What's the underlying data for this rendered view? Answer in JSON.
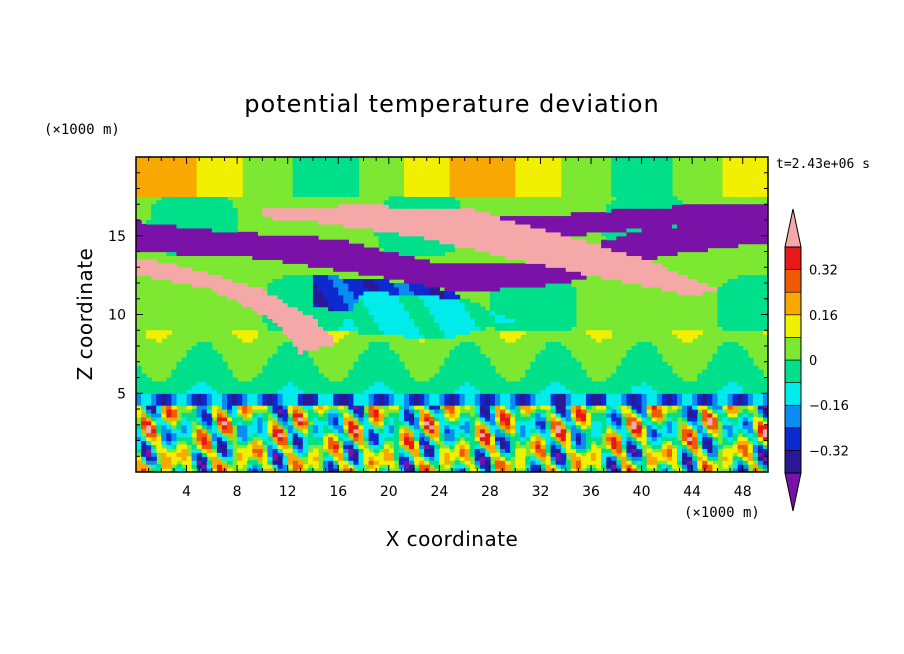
{
  "chart_data": {
    "type": "heatmap",
    "title": "potential temperature deviation",
    "xlabel": "X coordinate",
    "ylabel": "Z coordinate",
    "x_unit": "(×1000 m)",
    "y_unit": "(×1000 m)",
    "time_label": "t=2.43e+06 s",
    "xlim": [
      0,
      50
    ],
    "ylim": [
      0,
      20
    ],
    "x_ticks": [
      4,
      8,
      12,
      16,
      20,
      24,
      28,
      32,
      36,
      40,
      44,
      48
    ],
    "y_ticks": [
      5,
      10,
      15
    ],
    "colorbar": {
      "levels": [
        -0.4,
        -0.32,
        -0.24,
        -0.16,
        -0.08,
        0,
        0.08,
        0.16,
        0.24,
        0.32,
        0.4
      ],
      "labels": [
        "0.32",
        "0.16",
        "0",
        "−0.16",
        "−0.32"
      ],
      "label_values": [
        0.32,
        0.16,
        0,
        -0.16,
        -0.32
      ],
      "colors": [
        "#7a12a8",
        "#2a1896",
        "#0c2ad0",
        "#0a8cf0",
        "#00ecec",
        "#00e08a",
        "#7ce832",
        "#f0f000",
        "#f8a800",
        "#f05a00",
        "#e81818",
        "#f4a8a8"
      ],
      "extend": "both"
    },
    "bands": [
      {
        "name": "upper-purple",
        "value": -0.45,
        "points": [
          [
            0,
            15.9
          ],
          [
            8,
            15.2
          ],
          [
            16,
            14.8
          ],
          [
            24,
            13.2
          ],
          [
            32,
            13.4
          ],
          [
            40,
            15.4
          ],
          [
            50,
            16.2
          ],
          [
            50,
            14.6
          ],
          [
            42,
            13.8
          ],
          [
            34,
            12.0
          ],
          [
            26,
            11.4
          ],
          [
            18,
            12.6
          ],
          [
            10,
            13.6
          ],
          [
            0,
            14.0
          ]
        ]
      },
      {
        "name": "upper-lavender-jet",
        "value": -0.5,
        "points": [
          [
            24,
            16.2
          ],
          [
            32,
            16.2
          ],
          [
            40,
            16.8
          ],
          [
            50,
            17.1
          ],
          [
            50,
            16.0
          ],
          [
            42,
            15.6
          ],
          [
            34,
            15.0
          ],
          [
            26,
            15.2
          ]
        ]
      },
      {
        "name": "warm-tilted-jet",
        "value": 0.45,
        "points": [
          [
            10,
            16.8
          ],
          [
            18,
            16.9
          ],
          [
            26,
            16.8
          ],
          [
            34,
            15.0
          ],
          [
            40,
            13.6
          ],
          [
            46,
            11.6
          ],
          [
            44,
            11.2
          ],
          [
            38,
            12.2
          ],
          [
            30,
            13.5
          ],
          [
            22,
            15.0
          ],
          [
            14,
            15.9
          ],
          [
            10,
            16.2
          ]
        ]
      },
      {
        "name": "lower-tilted-warm",
        "value": 0.45,
        "points": [
          [
            0,
            13.6
          ],
          [
            4,
            13.0
          ],
          [
            10,
            11.6
          ],
          [
            14,
            9.8
          ],
          [
            16,
            8.2
          ],
          [
            13,
            7.6
          ],
          [
            11,
            9.6
          ],
          [
            6,
            11.6
          ],
          [
            0,
            12.6
          ]
        ]
      },
      {
        "name": "mid-blue",
        "value": -0.28,
        "points": [
          [
            14,
            12.5
          ],
          [
            22,
            12.0
          ],
          [
            26,
            11.2
          ],
          [
            22,
            10.2
          ],
          [
            14,
            10.4
          ]
        ]
      },
      {
        "name": "cyan-mid",
        "value": -0.1,
        "points": [
          [
            18,
            11.5
          ],
          [
            26,
            11.0
          ],
          [
            30,
            9.6
          ],
          [
            24,
            8.4
          ],
          [
            16,
            9.0
          ]
        ]
      },
      {
        "name": "low-level-mix",
        "value": -0.2,
        "points": [
          [
            0,
            5.0
          ],
          [
            50,
            5.0
          ],
          [
            50,
            3.0
          ],
          [
            0,
            3.0
          ]
        ]
      }
    ]
  }
}
